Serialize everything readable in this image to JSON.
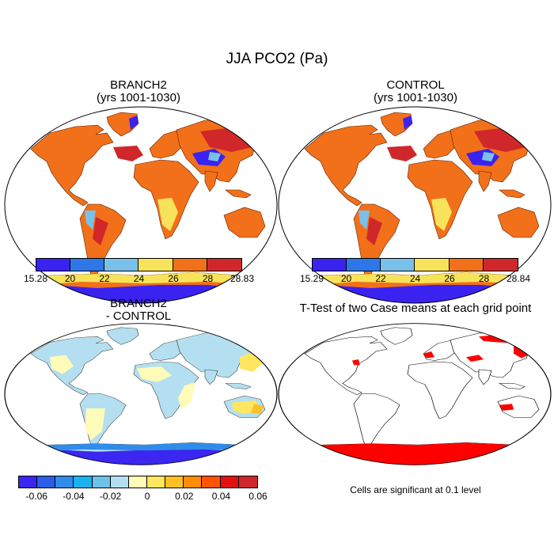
{
  "main_title": "JJA PCO2 (Pa)",
  "panels": {
    "top_left": {
      "title_line1": "BRANCH2",
      "title_line2": "(yrs 1001-1030)"
    },
    "top_right": {
      "title_line1": "CONTROL",
      "title_line2": "(yrs 1001-1030)"
    },
    "bottom_left": {
      "title_line1": "BRANCH2",
      "title_line2": "- CONTROL"
    },
    "bottom_right": {
      "title_line1": "T-Test of two Case means at each grid point"
    }
  },
  "colorbars": {
    "top_left": {
      "colors": [
        "#3a22f0",
        "#2f77e8",
        "#79c1ea",
        "#f7e35a",
        "#f2701a",
        "#d0282a"
      ],
      "labels": [
        "15.28",
        "20",
        "22",
        "24",
        "26",
        "28",
        "28.83"
      ]
    },
    "top_right": {
      "colors": [
        "#3a22f0",
        "#2f77e8",
        "#79c1ea",
        "#f7e35a",
        "#f2701a",
        "#d0282a"
      ],
      "labels": [
        "15.29",
        "20",
        "22",
        "24",
        "26",
        "28",
        "28.84"
      ]
    },
    "bottom_left": {
      "colors": [
        "#3b26f2",
        "#2a5ee8",
        "#2f8ce9",
        "#1ab3ee",
        "#6dc2ea",
        "#b4dff1",
        "#fffbb8",
        "#ffe660",
        "#fcc225",
        "#ff8d06",
        "#ff5202",
        "#e21110",
        "#d0282a"
      ],
      "labels": [
        "-0.06",
        "-0.04",
        "-0.02",
        "0",
        "0.02",
        "0.04",
        "0.06"
      ]
    }
  },
  "significance_note": "Cells are significant at 0.1 level",
  "colors": {
    "land_high": "#f2701a",
    "land_highest": "#d0282a",
    "land_mid": "#f7e35a",
    "land_low": "#79c1ea",
    "land_min": "#3a22f0",
    "diff_land": "#b4dff1",
    "diff_pos": "#fffbb8",
    "signif": "#ff0000"
  }
}
